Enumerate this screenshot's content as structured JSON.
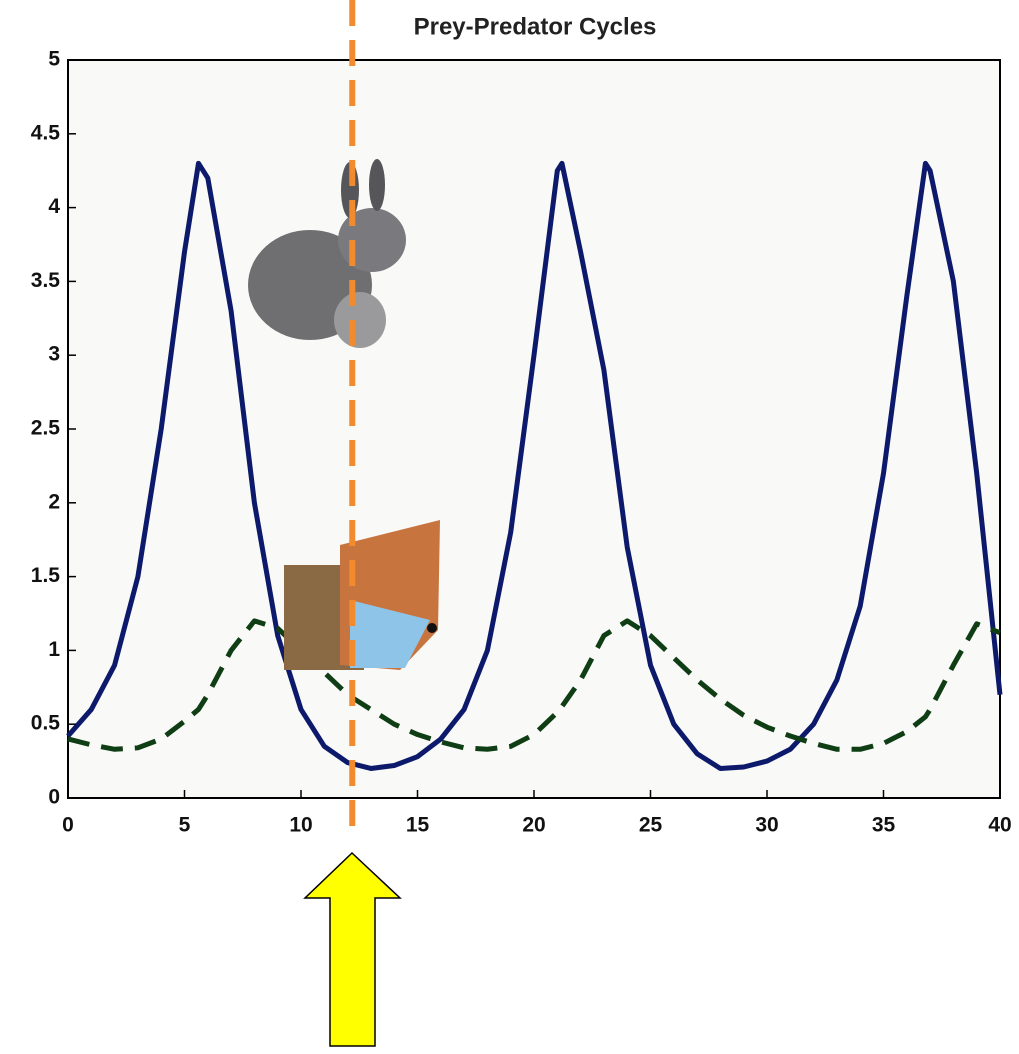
{
  "chart_data": {
    "type": "line",
    "title": "Prey-Predator Cycles",
    "x": [
      0,
      1,
      2,
      3,
      4,
      5,
      5.6,
      6,
      7,
      8,
      9,
      10,
      11,
      12,
      13,
      14,
      15,
      16,
      17,
      18,
      19,
      20,
      21,
      21.2,
      22,
      23,
      24,
      25,
      26,
      27,
      28,
      29,
      30,
      31,
      32,
      33,
      34,
      35,
      36,
      36.8,
      37,
      38,
      39,
      40
    ],
    "series": [
      {
        "color": "#0d1a6b",
        "style": "solid",
        "values": [
          0.42,
          0.6,
          0.9,
          1.5,
          2.5,
          3.7,
          4.3,
          4.2,
          3.3,
          2.0,
          1.1,
          0.6,
          0.35,
          0.24,
          0.2,
          0.22,
          0.28,
          0.4,
          0.6,
          1.0,
          1.8,
          3.0,
          4.25,
          4.3,
          3.7,
          2.9,
          1.7,
          0.9,
          0.5,
          0.3,
          0.2,
          0.21,
          0.25,
          0.33,
          0.5,
          0.8,
          1.3,
          2.2,
          3.4,
          4.3,
          4.25,
          3.5,
          2.2,
          0.7
        ]
      },
      {
        "color": "#0f3d14",
        "style": "dashed",
        "values": [
          0.4,
          0.36,
          0.33,
          0.34,
          0.4,
          0.52,
          0.6,
          0.7,
          1.0,
          1.2,
          1.15,
          1.0,
          0.85,
          0.7,
          0.6,
          0.5,
          0.43,
          0.38,
          0.34,
          0.33,
          0.35,
          0.43,
          0.58,
          0.62,
          0.8,
          1.1,
          1.2,
          1.1,
          0.95,
          0.8,
          0.67,
          0.56,
          0.48,
          0.42,
          0.37,
          0.33,
          0.33,
          0.37,
          0.45,
          0.55,
          0.6,
          0.9,
          1.18,
          1.12
        ]
      }
    ],
    "xlim": [
      0,
      40
    ],
    "xticks": [
      0,
      5,
      10,
      15,
      20,
      25,
      30,
      35,
      40
    ],
    "ylim": [
      0,
      5
    ],
    "yticks": [
      0,
      0.5,
      1,
      1.5,
      2,
      2.5,
      3,
      3.5,
      4,
      4.5,
      5
    ],
    "marker": {
      "x": 12.2,
      "color": "#f28a2e"
    }
  }
}
